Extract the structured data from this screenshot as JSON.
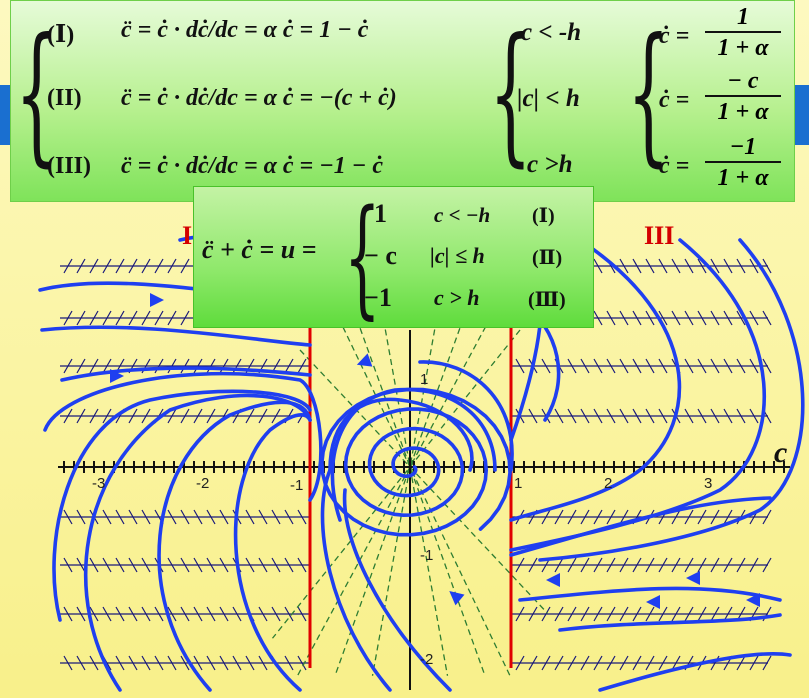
{
  "top_box": {
    "row1": {
      "label": "(Ⅰ)",
      "equation": "c̈ = ċ · dċ/dc = α ċ = 1 − ċ",
      "condition": "c < -h",
      "solution_lhs": "ċ =",
      "solution_num": "1",
      "solution_den": "1 + α"
    },
    "row2": {
      "label": "(II)",
      "equation": "c̈ = ċ · dċ/dc = α ċ = −(c + ċ)",
      "condition": "|c| < h",
      "solution_lhs": "ċ =",
      "solution_num": "− c",
      "solution_den": "1 + α"
    },
    "row3": {
      "label": "(III)",
      "equation": "c̈ = ċ · dċ/dc = α ċ = −1 − ċ",
      "condition": "c >h",
      "solution_lhs": "ċ =",
      "solution_num": "−1",
      "solution_den": "1 + α"
    }
  },
  "mid_box": {
    "lhs": "c̈ + ċ = u =",
    "cases": [
      {
        "value": "1",
        "condition": "c < −h",
        "label": "(Ⅰ)"
      },
      {
        "value": "− c",
        "condition": "|c| ≤ h",
        "label": "(Ⅱ)"
      },
      {
        "value": "−1",
        "condition": "c > h",
        "label": "(Ⅲ)"
      }
    ]
  },
  "regions": {
    "left": "I",
    "right": "III"
  },
  "axis": {
    "x_ticks": [
      "-3",
      "-2",
      "-1",
      "1",
      "2",
      "3"
    ],
    "y_ticks": [
      "1",
      "-1",
      "-2"
    ],
    "x_label": "c"
  },
  "colors": {
    "trajectory": "#1f3ff0",
    "switch_line": "#e00000",
    "isocline": "#2e7d32",
    "grid": "#1a1a7a",
    "background": "#fbf6a6"
  }
}
